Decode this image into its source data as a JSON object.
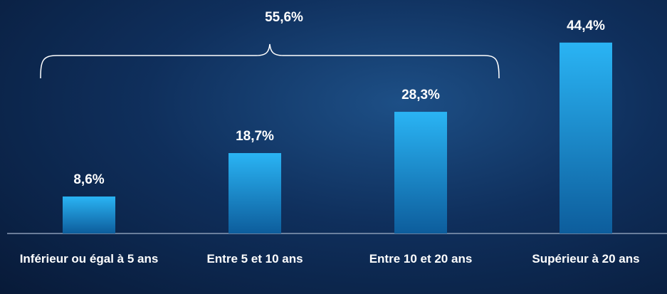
{
  "chart_data": {
    "type": "bar",
    "categories": [
      "Inférieur ou égal à 5 ans",
      "Entre 5 et 10 ans",
      "Entre 10 et 20 ans",
      "Supérieur à 20 ans"
    ],
    "values": [
      8.6,
      18.7,
      28.3,
      44.4
    ],
    "value_labels": [
      "8,6%",
      "18,7%",
      "28,3%",
      "44,4%"
    ],
    "color": "#2ab4f4",
    "annotation": {
      "value": 55.6,
      "label": "55,6%"
    }
  }
}
